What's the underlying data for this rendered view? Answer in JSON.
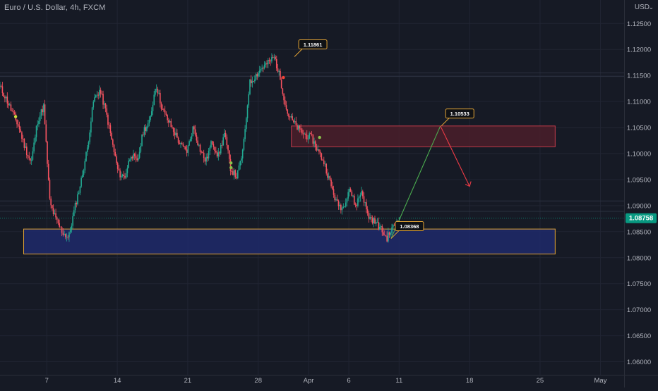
{
  "header": {
    "title": "Euro / U.S. Dollar, 4h, FXCM",
    "currency": "USD"
  },
  "chart_data": {
    "type": "candlestick",
    "symbol": "EURUSD",
    "interval": "4h",
    "broker": "FXCM",
    "ylim": [
      1.0575,
      1.1295
    ],
    "y_ticks": [
      "1.12500",
      "1.12000",
      "1.11500",
      "1.11000",
      "1.10500",
      "1.10000",
      "1.09500",
      "1.09000",
      "1.08500",
      "1.08000",
      "1.07500",
      "1.07000",
      "1.06500",
      "1.06000"
    ],
    "x_ticks": [
      {
        "label": "7",
        "day": 7
      },
      {
        "label": "14",
        "day": 14
      },
      {
        "label": "21",
        "day": 21
      },
      {
        "label": "28",
        "day": 28
      },
      {
        "label": "Apr",
        "day": 33
      },
      {
        "label": "6",
        "day": 37
      },
      {
        "label": "11",
        "day": 42
      },
      {
        "label": "18",
        "day": 49
      },
      {
        "label": "25",
        "day": 56
      },
      {
        "label": "May",
        "day": 62
      }
    ],
    "x_range_days": [
      2.35,
      64.35
    ],
    "current_price": "1.08758",
    "price_markers": [
      {
        "label": "1.11861",
        "day": 31.6,
        "price": 1.11861
      },
      {
        "label": "1.10533",
        "day": 46.2,
        "price": 1.10533
      },
      {
        "label": "1.08368",
        "day": 41.2,
        "price": 1.08368
      }
    ],
    "zones": [
      {
        "name": "demand-zone",
        "day_start": 4.7,
        "day_end": 57.5,
        "price_top": 1.0855,
        "price_bottom": 1.0807,
        "color": "#1f2a6b",
        "border": "#e0a234"
      },
      {
        "name": "supply-zone",
        "day_start": 31.3,
        "day_end": 57.5,
        "price_top": 1.1053,
        "price_bottom": 1.1013,
        "color": "#4a1e2a",
        "border": "#c23a4a"
      }
    ],
    "projection": [
      {
        "from_day": 41.2,
        "from_price": 1.0837,
        "to_day": 46.1,
        "to_price": 1.1053,
        "color": "#4caf50"
      },
      {
        "from_day": 46.1,
        "from_price": 1.1053,
        "to_day": 49.0,
        "to_price": 1.0937,
        "color": "#ef3b46"
      }
    ],
    "horizontal_lines": [
      {
        "price": 1.1148,
        "color": "#2b3140"
      },
      {
        "price": 1.1155,
        "color": "#2b3140"
      },
      {
        "price": 1.0909,
        "color": "#2b3140"
      },
      {
        "price": 1.0889,
        "color": "#2b3140"
      }
    ],
    "pivots": [
      1.1128,
      1.1105,
      1.1078,
      1.1052,
      1.1012,
      1.0982,
      1.1062,
      1.1091,
      1.0905,
      1.0872,
      1.0849,
      1.0838,
      1.0896,
      1.0947,
      1.101,
      1.1102,
      1.1122,
      1.108,
      1.102,
      1.0962,
      1.0955,
      1.1,
      1.0982,
      1.1045,
      1.106,
      1.1135,
      1.1085,
      1.1062,
      1.104,
      1.1015,
      1.1005,
      1.1052,
      1.101,
      1.0985,
      1.1024,
      1.0995,
      1.1039,
      1.097,
      1.0955,
      1.1009,
      1.1135,
      1.115,
      1.1165,
      1.1174,
      1.1186,
      1.114,
      1.108,
      1.106,
      1.1045,
      1.1035,
      1.103,
      1.1005,
      1.0982,
      1.0941,
      1.0904,
      1.0895,
      1.0935,
      1.0899,
      1.0929,
      1.088,
      1.087,
      1.0856,
      1.0837,
      1.0858,
      1.0876
    ],
    "signal_dots": [
      {
        "day": 3.9,
        "price": 1.1071,
        "color": "#cddc39"
      },
      {
        "day": 25.3,
        "price": 1.0982,
        "color": "#8bc34a"
      },
      {
        "day": 25.3,
        "price": 1.0973,
        "color": "#8bc34a"
      },
      {
        "day": 34.1,
        "price": 1.1031,
        "color": "#8bc34a"
      },
      {
        "day": 30.5,
        "price": 1.1146,
        "color": "#f44336"
      }
    ],
    "colors": {
      "bullish": "#22ab94",
      "bearish": "#f7525f",
      "grid": "#212533",
      "axis_text": "#b2b5be",
      "last_price_bg": "#089981"
    }
  }
}
